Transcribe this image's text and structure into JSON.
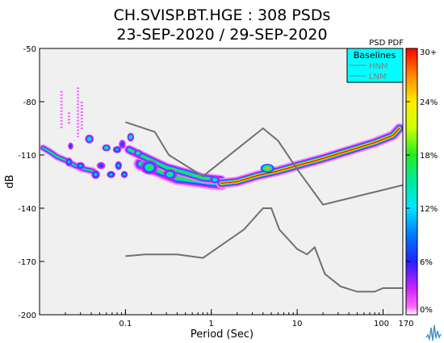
{
  "chart_data": {
    "type": "heatmap",
    "title_line1": "CH.SVISP.BT.HGE : 308 PSDs",
    "title_line2": "23-SEP-2020 / 29-SEP-2020",
    "xlabel": "Period (Sec)",
    "ylabel": "dB",
    "x_scale": "log",
    "xlim": [
      0.01,
      170
    ],
    "ylim": [
      -200,
      -50
    ],
    "x_ticks": [
      {
        "value": 0.1,
        "label": "0.1"
      },
      {
        "value": 1,
        "label": "1"
      },
      {
        "value": 10,
        "label": "10"
      },
      {
        "value": 100,
        "label": "100"
      },
      {
        "value": 170,
        "label": "170"
      }
    ],
    "y_ticks": [
      {
        "value": -50,
        "label": "-50"
      },
      {
        "value": -80,
        "label": "-80"
      },
      {
        "value": -110,
        "label": "-110"
      },
      {
        "value": -140,
        "label": "-140"
      },
      {
        "value": -170,
        "label": "-170"
      },
      {
        "value": -200,
        "label": "-200"
      }
    ],
    "colorbar": {
      "title": "PSD PDF",
      "ticks": [
        {
          "value": 30,
          "label": "30+"
        },
        {
          "value": 24,
          "label": "24%"
        },
        {
          "value": 18,
          "label": "18%"
        },
        {
          "value": 12,
          "label": "12%"
        },
        {
          "value": 6,
          "label": "6%"
        },
        {
          "value": 0,
          "label": "0%"
        }
      ]
    },
    "legend": {
      "title": "Baselines",
      "position": "top-right",
      "entries": [
        {
          "label": "HNM",
          "color": "#808080"
        },
        {
          "label": "LNM",
          "color": "#808080"
        }
      ]
    },
    "baselines": {
      "hnm": [
        [
          0.1,
          -91.5
        ],
        [
          0.22,
          -97
        ],
        [
          0.32,
          -110
        ],
        [
          0.8,
          -122
        ],
        [
          4,
          -95
        ],
        [
          6,
          -102
        ],
        [
          10,
          -118
        ],
        [
          20,
          -138
        ],
        [
          170,
          -127
        ]
      ],
      "lnm": [
        [
          0.1,
          -167
        ],
        [
          0.17,
          -166
        ],
        [
          0.4,
          -166
        ],
        [
          0.8,
          -168
        ],
        [
          2.4,
          -152
        ],
        [
          4,
          -140
        ],
        [
          5,
          -140
        ],
        [
          6.2,
          -152
        ],
        [
          10,
          -163
        ],
        [
          13,
          -166
        ],
        [
          16,
          -162
        ],
        [
          21,
          -177
        ],
        [
          32,
          -184
        ],
        [
          50,
          -187
        ],
        [
          80,
          -187
        ],
        [
          100,
          -185
        ],
        [
          170,
          -185
        ]
      ]
    },
    "density_main_ridge": [
      [
        1.3,
        -126
      ],
      [
        2,
        -125
      ],
      [
        3.5,
        -121.5
      ],
      [
        6,
        -119
      ],
      [
        10,
        -116
      ],
      [
        20,
        -112
      ],
      [
        40,
        -107.5
      ],
      [
        80,
        -103
      ],
      [
        130,
        -99
      ],
      [
        155,
        -95
      ]
    ],
    "density_ridge_upper": [
      [
        0.11,
        -107
      ],
      [
        0.2,
        -113
      ],
      [
        0.3,
        -117
      ],
      [
        0.5,
        -120
      ],
      [
        0.8,
        -123
      ],
      [
        1.3,
        -124
      ]
    ],
    "density_ridge_lower": [
      [
        0.15,
        -115
      ],
      [
        0.25,
        -119
      ],
      [
        0.4,
        -123
      ],
      [
        0.6,
        -124
      ],
      [
        1,
        -125.5
      ],
      [
        1.3,
        -126
      ]
    ],
    "density_short_period": [
      [
        0.011,
        -106
      ],
      [
        0.013,
        -108
      ],
      [
        0.016,
        -111
      ],
      [
        0.02,
        -113
      ],
      [
        0.026,
        -116
      ],
      [
        0.033,
        -118
      ],
      [
        0.042,
        -119
      ]
    ],
    "density_blobs": [
      [
        0.022,
        -114,
        0.04,
        2.5,
        10
      ],
      [
        0.023,
        -105,
        0.03,
        2,
        8
      ],
      [
        0.03,
        -116,
        0.05,
        2,
        11
      ],
      [
        0.038,
        -101,
        0.05,
        2.5,
        12
      ],
      [
        0.045,
        -121,
        0.05,
        2.5,
        9
      ],
      [
        0.052,
        -116,
        0.05,
        2,
        8
      ],
      [
        0.06,
        -106,
        0.05,
        2,
        14
      ],
      [
        0.068,
        -121,
        0.05,
        2,
        9
      ],
      [
        0.08,
        -107,
        0.05,
        2,
        9
      ],
      [
        0.083,
        -116,
        0.04,
        2.5,
        10
      ],
      [
        0.097,
        -121,
        0.04,
        2,
        10
      ],
      [
        0.092,
        -104,
        0.04,
        2.5,
        8
      ],
      [
        0.115,
        -100,
        0.04,
        2.5,
        12
      ],
      [
        0.14,
        -109,
        0.05,
        2,
        14
      ],
      [
        0.19,
        -117,
        0.1,
        4,
        13
      ],
      [
        0.33,
        -121,
        0.08,
        3,
        14
      ],
      [
        1.1,
        -124,
        0.06,
        2,
        12
      ],
      [
        4.5,
        -117.5,
        0.08,
        2.5,
        18
      ]
    ],
    "scatter_spikes": [
      [
        0.018,
        -95,
        -74
      ],
      [
        0.022,
        -93,
        -86
      ],
      [
        0.028,
        -100,
        -72
      ],
      [
        0.031,
        -96,
        -80
      ]
    ],
    "grid": false
  }
}
